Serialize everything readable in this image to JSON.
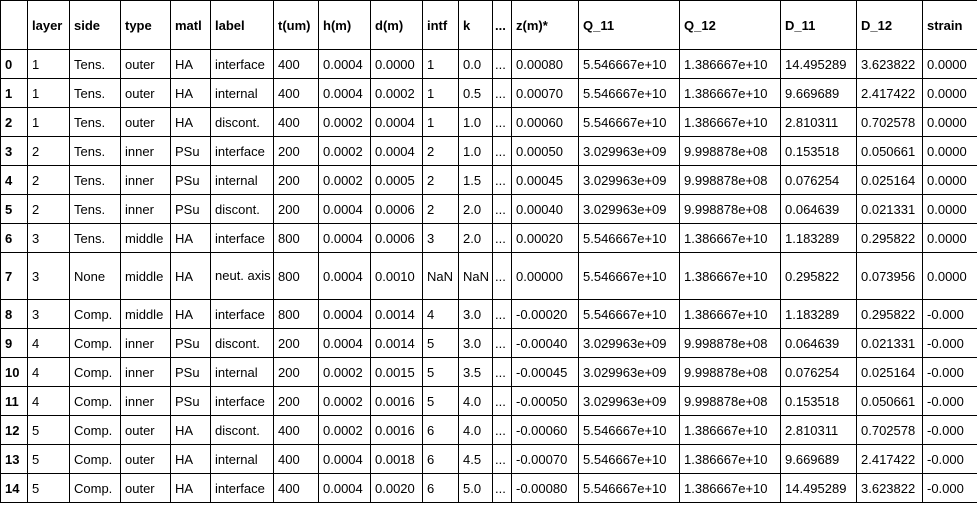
{
  "table": {
    "columns": [
      "",
      "layer",
      "side",
      "type",
      "matl",
      "label",
      "t(um)",
      "h(m)",
      "d(m)",
      "intf",
      "k",
      "...",
      "z(m)*",
      "Q_11",
      "Q_12",
      "D_11",
      "D_12",
      "strain"
    ],
    "rows": [
      [
        "0",
        "1",
        "Tens.",
        "outer",
        "HA",
        "interface",
        "400",
        "0.0004",
        "0.0000",
        "1",
        "0.0",
        "...",
        "0.00080",
        "5.546667e+10",
        "1.386667e+10",
        "14.495289",
        "3.623822",
        "0.0000"
      ],
      [
        "1",
        "1",
        "Tens.",
        "outer",
        "HA",
        "internal",
        "400",
        "0.0004",
        "0.0002",
        "1",
        "0.5",
        "...",
        "0.00070",
        "5.546667e+10",
        "1.386667e+10",
        "9.669689",
        "2.417422",
        "0.0000"
      ],
      [
        "2",
        "1",
        "Tens.",
        "outer",
        "HA",
        "discont.",
        "400",
        "0.0002",
        "0.0004",
        "1",
        "1.0",
        "...",
        "0.00060",
        "5.546667e+10",
        "1.386667e+10",
        "2.810311",
        "0.702578",
        "0.0000"
      ],
      [
        "3",
        "2",
        "Tens.",
        "inner",
        "PSu",
        "interface",
        "200",
        "0.0002",
        "0.0004",
        "2",
        "1.0",
        "...",
        "0.00050",
        "3.029963e+09",
        "9.998878e+08",
        "0.153518",
        "0.050661",
        "0.0000"
      ],
      [
        "4",
        "2",
        "Tens.",
        "inner",
        "PSu",
        "internal",
        "200",
        "0.0002",
        "0.0005",
        "2",
        "1.5",
        "...",
        "0.00045",
        "3.029963e+09",
        "9.998878e+08",
        "0.076254",
        "0.025164",
        "0.0000"
      ],
      [
        "5",
        "2",
        "Tens.",
        "inner",
        "PSu",
        "discont.",
        "200",
        "0.0004",
        "0.0006",
        "2",
        "2.0",
        "...",
        "0.00040",
        "3.029963e+09",
        "9.998878e+08",
        "0.064639",
        "0.021331",
        "0.0000"
      ],
      [
        "6",
        "3",
        "Tens.",
        "middle",
        "HA",
        "interface",
        "800",
        "0.0004",
        "0.0006",
        "3",
        "2.0",
        "...",
        "0.00020",
        "5.546667e+10",
        "1.386667e+10",
        "1.183289",
        "0.295822",
        "0.0000"
      ],
      [
        "7",
        "3",
        "None",
        "middle",
        "HA",
        "neut. axis",
        "800",
        "0.0004",
        "0.0010",
        "NaN",
        "NaN",
        "...",
        "0.00000",
        "5.546667e+10",
        "1.386667e+10",
        "0.295822",
        "0.073956",
        "0.0000"
      ],
      [
        "8",
        "3",
        "Comp.",
        "middle",
        "HA",
        "interface",
        "800",
        "0.0004",
        "0.0014",
        "4",
        "3.0",
        "...",
        "-0.00020",
        "5.546667e+10",
        "1.386667e+10",
        "1.183289",
        "0.295822",
        "-0.000"
      ],
      [
        "9",
        "4",
        "Comp.",
        "inner",
        "PSu",
        "discont.",
        "200",
        "0.0004",
        "0.0014",
        "5",
        "3.0",
        "...",
        "-0.00040",
        "3.029963e+09",
        "9.998878e+08",
        "0.064639",
        "0.021331",
        "-0.000"
      ],
      [
        "10",
        "4",
        "Comp.",
        "inner",
        "PSu",
        "internal",
        "200",
        "0.0002",
        "0.0015",
        "5",
        "3.5",
        "...",
        "-0.00045",
        "3.029963e+09",
        "9.998878e+08",
        "0.076254",
        "0.025164",
        "-0.000"
      ],
      [
        "11",
        "4",
        "Comp.",
        "inner",
        "PSu",
        "interface",
        "200",
        "0.0002",
        "0.0016",
        "5",
        "4.0",
        "...",
        "-0.00050",
        "3.029963e+09",
        "9.998878e+08",
        "0.153518",
        "0.050661",
        "-0.000"
      ],
      [
        "12",
        "5",
        "Comp.",
        "outer",
        "HA",
        "discont.",
        "400",
        "0.0002",
        "0.0016",
        "6",
        "4.0",
        "...",
        "-0.00060",
        "5.546667e+10",
        "1.386667e+10",
        "2.810311",
        "0.702578",
        "-0.000"
      ],
      [
        "13",
        "5",
        "Comp.",
        "outer",
        "HA",
        "internal",
        "400",
        "0.0004",
        "0.0018",
        "6",
        "4.5",
        "...",
        "-0.00070",
        "5.546667e+10",
        "1.386667e+10",
        "9.669689",
        "2.417422",
        "-0.000"
      ],
      [
        "14",
        "5",
        "Comp.",
        "outer",
        "HA",
        "interface",
        "400",
        "0.0004",
        "0.0020",
        "6",
        "5.0",
        "...",
        "-0.00080",
        "5.546667e+10",
        "1.386667e+10",
        "14.495289",
        "3.623822",
        "-0.000"
      ]
    ]
  }
}
